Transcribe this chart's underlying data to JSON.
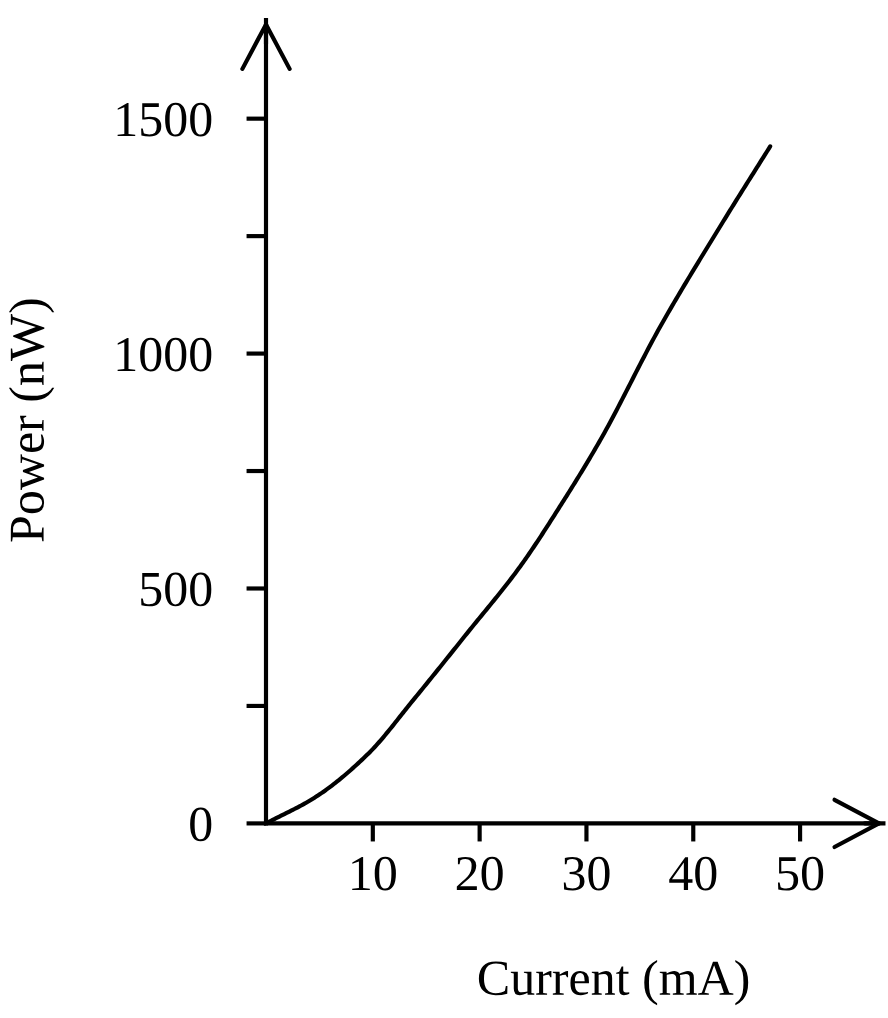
{
  "chart_data": {
    "type": "line",
    "xlabel": "Current (mA)",
    "ylabel": "Power (nW)",
    "x": [
      0,
      4.7,
      9.6,
      13.8,
      18.8,
      23.8,
      27.5,
      31.3,
      36.9,
      42.5,
      47.2
    ],
    "values": [
      0,
      57,
      149,
      263,
      404,
      547,
      674,
      816,
      1057,
      1270,
      1441
    ],
    "color": "#000000",
    "xlim": [
      0,
      57.8
    ],
    "ylim": [
      0,
      1710
    ],
    "xticks": [
      10,
      20,
      30,
      40,
      50
    ],
    "yticks": [
      0,
      {
        "value": 250,
        "label": null
      },
      500,
      {
        "value": 750,
        "label": null
      },
      1000,
      {
        "value": 1250,
        "label": null
      },
      1500
    ],
    "grid": false,
    "marker": "none",
    "line_style": "solid"
  }
}
